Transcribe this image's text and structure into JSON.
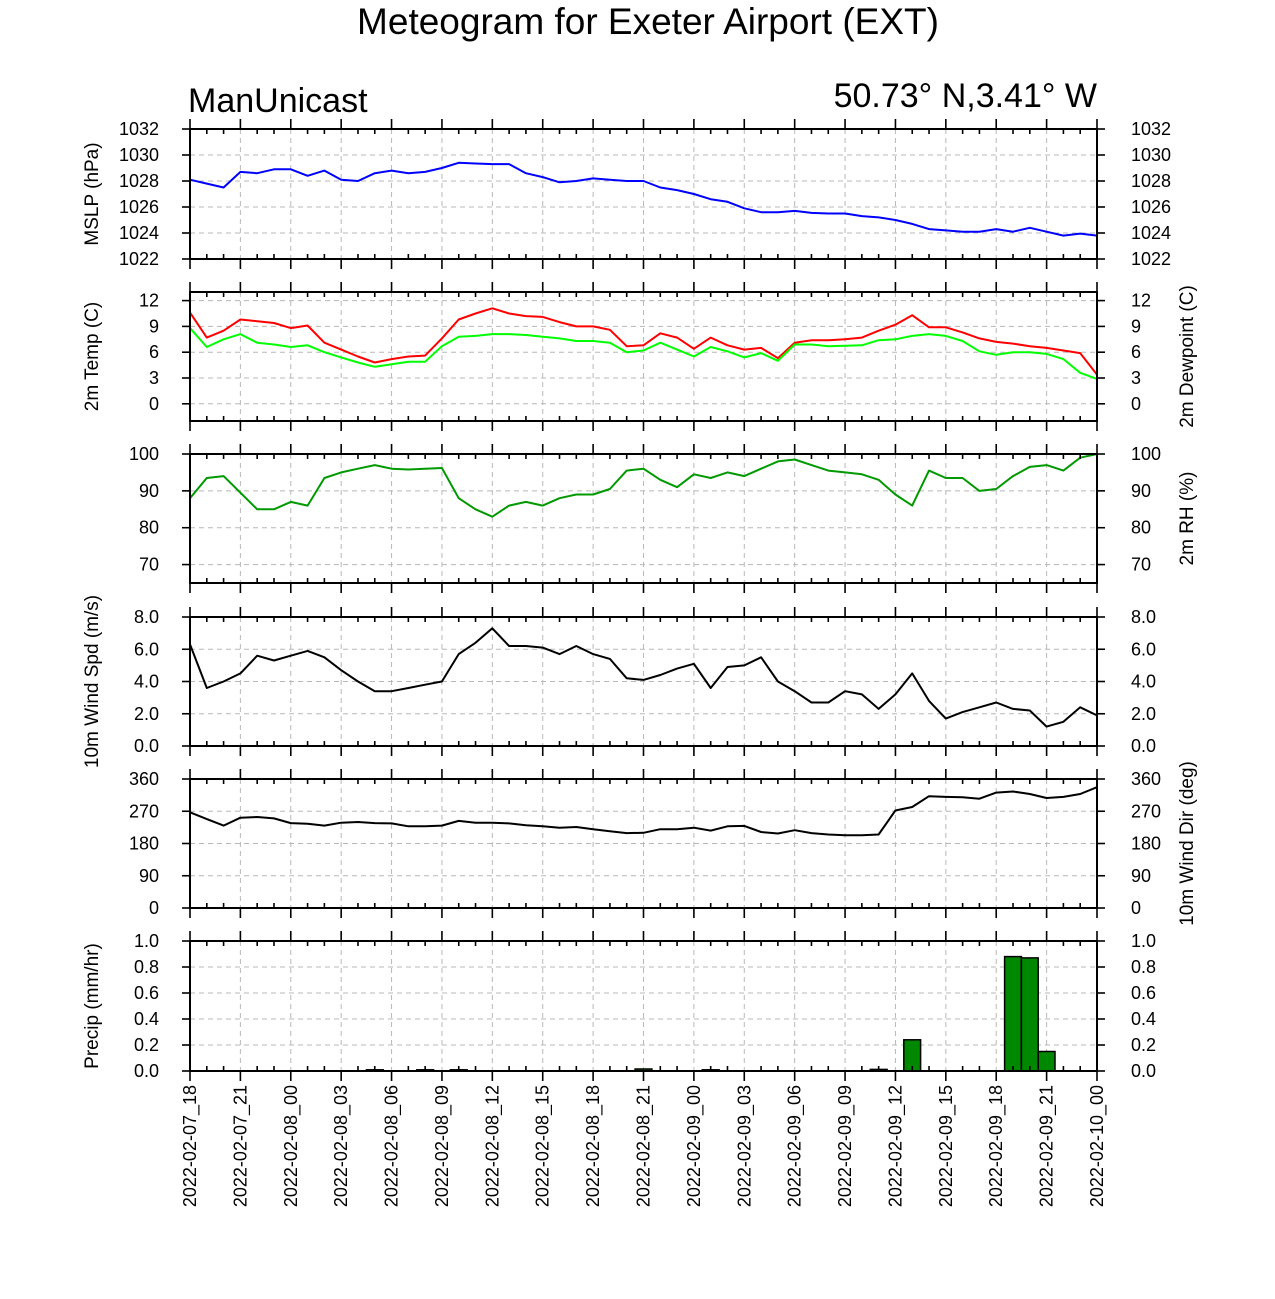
{
  "header": {
    "title": "Meteogram for Exeter Airport (EXT)",
    "model": "ManUnicast",
    "location": "50.73° N,3.41° W"
  },
  "chart_data": [
    {
      "id": "mslp",
      "type": "line",
      "ylabel_left": "MSLP (hPa)",
      "ylabel_right": "",
      "ylim": [
        1022,
        1032
      ],
      "yticks": [
        1022,
        1024,
        1026,
        1028,
        1030,
        1032
      ],
      "tick_labels_right": true,
      "grid": true,
      "series": [
        {
          "color": "#0000ff",
          "x": [
            0,
            1,
            2,
            3,
            4,
            5,
            6,
            7,
            8,
            9,
            10,
            11,
            12,
            13,
            14,
            15,
            16,
            17,
            18,
            19,
            20,
            21,
            22,
            23,
            24,
            25,
            26,
            27,
            28,
            29,
            30,
            31,
            32,
            33,
            34,
            35,
            36,
            37,
            38,
            39,
            40,
            41,
            42,
            43,
            44,
            45,
            46,
            47,
            48,
            49,
            50,
            51,
            52,
            53,
            54
          ],
          "values": [
            1028.1,
            1027.8,
            1027.5,
            1028.7,
            1028.6,
            1028.9,
            1028.9,
            1028.4,
            1028.8,
            1028.1,
            1028.0,
            1028.6,
            1028.8,
            1028.6,
            1028.7,
            1029.0,
            1029.4,
            1029.35,
            1029.3,
            1029.3,
            1028.6,
            1028.3,
            1027.9,
            1028.0,
            1028.2,
            1028.1,
            1028.0,
            1028.0,
            1027.5,
            1027.3,
            1027.0,
            1026.6,
            1026.4,
            1025.9,
            1025.6,
            1025.6,
            1025.7,
            1025.55,
            1025.5,
            1025.5,
            1025.3,
            1025.2,
            1025.0,
            1024.7,
            1024.3,
            1024.2,
            1024.1,
            1024.1,
            1024.3,
            1024.1,
            1024.4,
            1024.1,
            1023.8,
            1023.95,
            1023.8
          ]
        }
      ]
    },
    {
      "id": "temp",
      "type": "line",
      "ylabel_left": "2m Temp (C)",
      "ylabel_right": "2m Dewpoint (C)",
      "ylim": [
        -2,
        13
      ],
      "yticks": [
        0,
        3,
        6,
        9,
        12
      ],
      "tick_labels_right": true,
      "grid": true,
      "series": [
        {
          "color": "#ff0000",
          "x": [
            0,
            1,
            2,
            3,
            4,
            5,
            6,
            7,
            8,
            9,
            10,
            11,
            12,
            13,
            14,
            15,
            16,
            17,
            18,
            19,
            20,
            21,
            22,
            23,
            24,
            25,
            26,
            27,
            28,
            29,
            30,
            31,
            32,
            33,
            34,
            35,
            36,
            37,
            38,
            39,
            40,
            41,
            42,
            43,
            44,
            45,
            46,
            47,
            48,
            49,
            50,
            51,
            52,
            53,
            54
          ],
          "values": [
            10.6,
            7.7,
            8.5,
            9.8,
            9.6,
            9.4,
            8.8,
            9.1,
            7.1,
            6.3,
            5.5,
            4.8,
            5.2,
            5.5,
            5.6,
            7.6,
            9.8,
            10.5,
            11.1,
            10.5,
            10.2,
            10.1,
            9.5,
            9.0,
            9.0,
            8.6,
            6.7,
            6.8,
            8.2,
            7.7,
            6.4,
            7.7,
            6.8,
            6.3,
            6.5,
            5.3,
            7.1,
            7.4,
            7.4,
            7.5,
            7.7,
            8.5,
            9.2,
            10.3,
            8.9,
            8.9,
            8.3,
            7.6,
            7.2,
            7.0,
            6.7,
            6.5,
            6.2,
            5.9,
            3.4
          ]
        },
        {
          "color": "#00ff00",
          "x": [
            0,
            1,
            2,
            3,
            4,
            5,
            6,
            7,
            8,
            9,
            10,
            11,
            12,
            13,
            14,
            15,
            16,
            17,
            18,
            19,
            20,
            21,
            22,
            23,
            24,
            25,
            26,
            27,
            28,
            29,
            30,
            31,
            32,
            33,
            34,
            35,
            36,
            37,
            38,
            39,
            40,
            41,
            42,
            43,
            44,
            45,
            46,
            47,
            48,
            49,
            50,
            51,
            52,
            53,
            54
          ],
          "values": [
            8.8,
            6.6,
            7.5,
            8.1,
            7.1,
            6.9,
            6.6,
            6.8,
            6.0,
            5.4,
            4.8,
            4.3,
            4.6,
            4.9,
            4.9,
            6.7,
            7.8,
            7.9,
            8.1,
            8.1,
            8.0,
            7.8,
            7.6,
            7.3,
            7.3,
            7.1,
            6.0,
            6.2,
            7.1,
            6.3,
            5.5,
            6.6,
            6.1,
            5.4,
            5.9,
            5.0,
            6.9,
            6.9,
            6.7,
            6.75,
            6.8,
            7.4,
            7.5,
            7.9,
            8.1,
            7.9,
            7.3,
            6.1,
            5.7,
            6.0,
            6.0,
            5.8,
            5.2,
            3.6,
            2.9
          ]
        }
      ]
    },
    {
      "id": "rh",
      "type": "line",
      "ylabel_left": "",
      "ylabel_right": "2m RH (%)",
      "ylim": [
        65,
        100
      ],
      "yticks": [
        70,
        80,
        90,
        100
      ],
      "tick_labels_right": true,
      "grid": true,
      "series": [
        {
          "color": "#009900",
          "x": [
            0,
            1,
            2,
            3,
            4,
            5,
            6,
            7,
            8,
            9,
            10,
            11,
            12,
            13,
            14,
            15,
            16,
            17,
            18,
            19,
            20,
            21,
            22,
            23,
            24,
            25,
            26,
            27,
            28,
            29,
            30,
            31,
            32,
            33,
            34,
            35,
            36,
            37,
            38,
            39,
            40,
            41,
            42,
            43,
            44,
            45,
            46,
            47,
            48,
            49,
            50,
            51,
            52,
            53,
            54
          ],
          "values": [
            88,
            93.5,
            94,
            89.5,
            85,
            85,
            87,
            86,
            93.5,
            95,
            96,
            97,
            96,
            95.8,
            96,
            96.2,
            88,
            85,
            83,
            86,
            87,
            86,
            88,
            89,
            89,
            90.5,
            95.5,
            96,
            93,
            91,
            94.5,
            93.5,
            95,
            94,
            96,
            98,
            98.5,
            97,
            95.5,
            95,
            94.5,
            93,
            89,
            86,
            95.5,
            93.5,
            93.5,
            90,
            90.5,
            94,
            96.5,
            97,
            95.5,
            99,
            100
          ]
        }
      ]
    },
    {
      "id": "wspd",
      "type": "line",
      "ylabel_left": "10m Wind Spd (m/s)",
      "ylabel_right": "",
      "ylim": [
        0,
        8
      ],
      "yticks": [
        0,
        2,
        4,
        6,
        8
      ],
      "ytick_labels": [
        "0.0",
        "2.0",
        "4.0",
        "6.0",
        "8.0"
      ],
      "tick_labels_right": true,
      "grid": true,
      "series": [
        {
          "color": "#000000",
          "x": [
            0,
            1,
            2,
            3,
            4,
            5,
            6,
            7,
            8,
            9,
            10,
            11,
            12,
            13,
            14,
            15,
            16,
            17,
            18,
            19,
            20,
            21,
            22,
            23,
            24,
            25,
            26,
            27,
            28,
            29,
            30,
            31,
            32,
            33,
            34,
            35,
            36,
            37,
            38,
            39,
            40,
            41,
            42,
            43,
            44,
            45,
            46,
            47,
            48,
            49,
            50,
            51,
            52,
            53,
            54
          ],
          "values": [
            6.3,
            3.6,
            4.0,
            4.5,
            5.6,
            5.3,
            5.6,
            5.9,
            5.5,
            4.7,
            4.0,
            3.4,
            3.4,
            3.6,
            3.8,
            4.0,
            5.7,
            6.4,
            7.3,
            6.2,
            6.2,
            6.1,
            5.7,
            6.2,
            5.7,
            5.4,
            4.2,
            4.1,
            4.4,
            4.8,
            5.1,
            3.6,
            4.9,
            5.0,
            5.5,
            4.0,
            3.4,
            2.7,
            2.7,
            3.4,
            3.2,
            2.3,
            3.2,
            4.5,
            2.8,
            1.7,
            2.1,
            2.4,
            2.7,
            2.3,
            2.2,
            1.2,
            1.5,
            2.4,
            1.9
          ]
        }
      ]
    },
    {
      "id": "wdir",
      "type": "line",
      "ylabel_left": "",
      "ylabel_right": "10m Wind Dir (deg)",
      "ylim": [
        0,
        360
      ],
      "yticks": [
        0,
        90,
        180,
        270,
        360
      ],
      "tick_labels_right": true,
      "grid": true,
      "series": [
        {
          "color": "#000000",
          "x": [
            0,
            1,
            2,
            3,
            4,
            5,
            6,
            7,
            8,
            9,
            10,
            11,
            12,
            13,
            14,
            15,
            16,
            17,
            18,
            19,
            20,
            21,
            22,
            23,
            24,
            25,
            26,
            27,
            28,
            29,
            30,
            31,
            32,
            33,
            34,
            35,
            36,
            37,
            38,
            39,
            40,
            41,
            42,
            43,
            44,
            45,
            46,
            47,
            48,
            49,
            50,
            51,
            52,
            53,
            54
          ],
          "values": [
            267,
            248,
            230,
            252,
            254,
            250,
            237,
            235,
            230,
            238,
            240,
            237,
            236,
            228,
            228,
            230,
            243,
            238,
            238,
            236,
            231,
            228,
            224,
            226,
            220,
            214,
            209,
            210,
            220,
            220,
            224,
            216,
            228,
            229,
            212,
            208,
            217,
            209,
            205,
            203,
            203,
            205,
            272,
            282,
            312,
            310,
            309,
            305,
            322,
            325,
            318,
            307,
            310,
            318,
            337
          ]
        }
      ]
    },
    {
      "id": "precip",
      "type": "bar",
      "ylabel_left": "Precip (mm/hr)",
      "ylabel_right": "",
      "ylim": [
        0,
        1
      ],
      "yticks": [
        0,
        0.2,
        0.4,
        0.6,
        0.8,
        1.0
      ],
      "ytick_labels": [
        "0.0",
        "0.2",
        "0.4",
        "0.6",
        "0.8",
        "1.0"
      ],
      "tick_labels_right": true,
      "grid": true,
      "bar_color": "#008800",
      "series": [
        {
          "x": [
            11,
            14,
            16,
            27,
            31,
            41,
            43,
            49,
            50,
            51
          ],
          "values": [
            0.004,
            0.002,
            0.003,
            0.015,
            0.006,
            0.012,
            0.24,
            0.88,
            0.87,
            0.15
          ]
        }
      ]
    }
  ],
  "x_axis": {
    "range_hours": [
      0,
      54
    ],
    "major_ticks_hours": [
      0,
      3,
      6,
      9,
      12,
      15,
      18,
      21,
      24,
      27,
      30,
      33,
      36,
      39,
      42,
      45,
      48,
      51,
      54
    ],
    "tick_labels": [
      "2022-02-07_18",
      "2022-02-07_21",
      "2022-02-08_00",
      "2022-02-08_03",
      "2022-02-08_06",
      "2022-02-08_09",
      "2022-02-08_12",
      "2022-02-08_15",
      "2022-02-08_18",
      "2022-02-08_21",
      "2022-02-09_00",
      "2022-02-09_03",
      "2022-02-09_06",
      "2022-02-09_09",
      "2022-02-09_12",
      "2022-02-09_15",
      "2022-02-09_18",
      "2022-02-09_21",
      "2022-02-10_00"
    ]
  }
}
